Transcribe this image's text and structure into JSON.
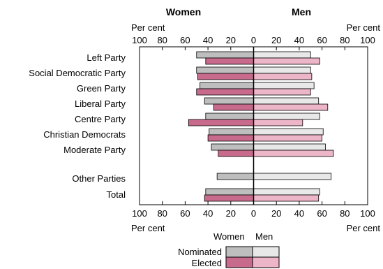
{
  "chart_data": {
    "type": "bar",
    "title_left": "Women",
    "title_right": "Men",
    "unit_label": "Per cent",
    "xlim": [
      0,
      100
    ],
    "ticks": [
      100,
      80,
      60,
      40,
      20,
      0,
      20,
      40,
      60,
      80,
      100
    ],
    "categories": [
      "Left Party",
      "Social Democratic Party",
      "Green Party",
      "Liberal Party",
      "Centre Party",
      "Christian Democrats",
      "Moderate Party",
      "Other Parties",
      "Total"
    ],
    "series": [
      {
        "name": "Nominated",
        "group": "Women",
        "color": "#bebebe",
        "values": [
          50,
          50,
          47,
          43,
          42,
          39,
          37,
          null,
          42
        ]
      },
      {
        "name": "Elected",
        "group": "Women",
        "color": "#c86a8c",
        "values": [
          42,
          49,
          50,
          35,
          57,
          40,
          31,
          null,
          43
        ]
      },
      {
        "name": "Nominated",
        "group": "Men",
        "color": "#e8e8e8",
        "values": [
          50,
          50,
          53,
          57,
          58,
          61,
          63,
          null,
          58
        ]
      },
      {
        "name": "Elected",
        "group": "Men",
        "color": "#ecb5c8",
        "values": [
          58,
          51,
          50,
          65,
          43,
          60,
          70,
          null,
          57
        ]
      }
    ],
    "other_parties": {
      "women_nominated": 32,
      "men_nominated": 68
    },
    "legend": {
      "col_women": "Women",
      "col_men": "Men",
      "row_nominated": "Nominated",
      "row_elected": "Elected",
      "placement": "bottom-center"
    }
  }
}
